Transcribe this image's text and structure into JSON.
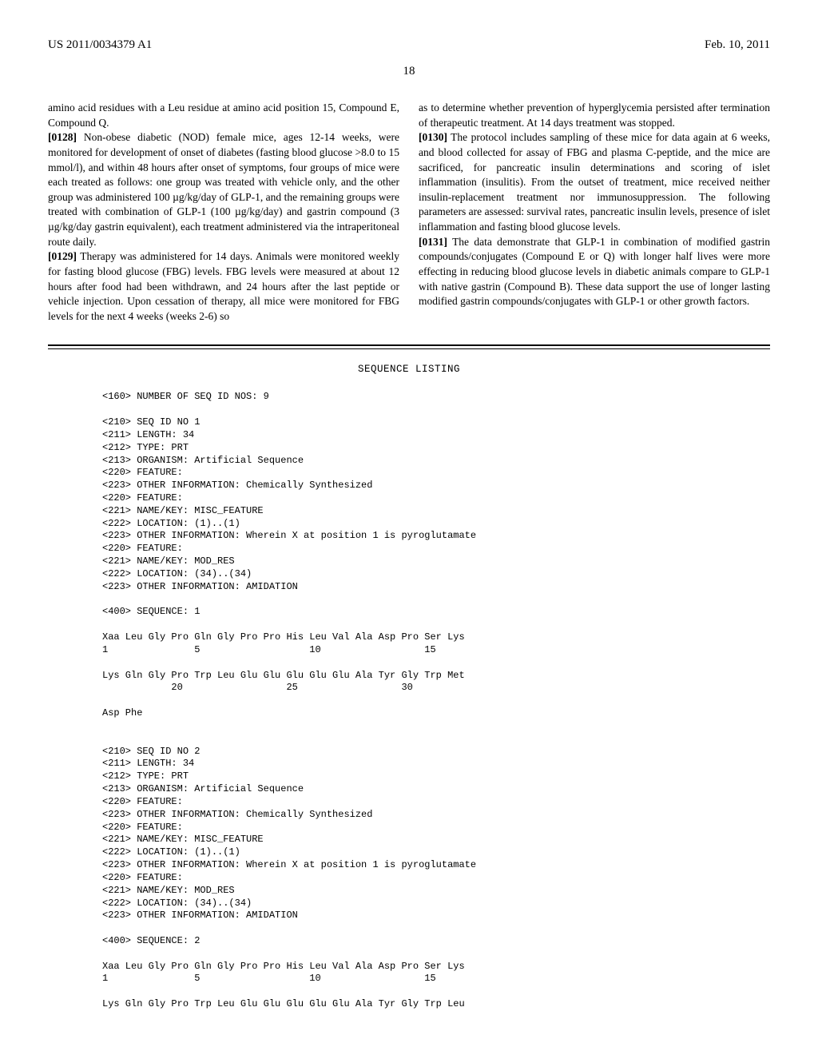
{
  "header": {
    "left": "US 2011/0034379 A1",
    "right": "Feb. 10, 2011"
  },
  "page_number": "18",
  "left_column": {
    "continuation": "amino acid residues with a Leu residue at amino acid position 15, Compound E, Compound Q.",
    "p0128_num": "[0128]",
    "p0128": "    Non-obese diabetic (NOD) female mice, ages 12-14 weeks, were monitored for development of onset of diabetes (fasting blood glucose >8.0 to 15 mmol/l), and within 48 hours after onset of symptoms, four groups of mice were each treated as follows: one group was treated with vehicle only, and the other group was administered 100 µg/kg/day of GLP-1, and the remaining groups were treated with combination of GLP-1 (100 µg/kg/day) and gastrin compound (3 µg/kg/day gastrin equivalent), each treatment administered via the intraperitoneal route daily.",
    "p0129_num": "[0129]",
    "p0129": "    Therapy was administered for 14 days. Animals were monitored weekly for fasting blood glucose (FBG) levels. FBG levels were measured at about 12 hours after food had been withdrawn, and 24 hours after the last peptide or vehicle injection. Upon cessation of therapy, all mice were monitored for FBG levels for the next 4 weeks (weeks 2-6) so"
  },
  "right_column": {
    "continuation": "as to determine whether prevention of hyperglycemia persisted after termination of therapeutic treatment. At 14 days treatment was stopped.",
    "p0130_num": "[0130]",
    "p0130": "    The protocol includes sampling of these mice for data again at 6 weeks, and blood collected for assay of FBG and plasma C-peptide, and the mice are sacrificed, for pancreatic insulin determinations and scoring of islet inflammation (insulitis). From the outset of treatment, mice received neither insulin-replacement treatment nor immunosuppression. The following parameters are assessed: survival rates, pancreatic insulin levels, presence of islet inflammation and fasting blood glucose levels.",
    "p0131_num": "[0131]",
    "p0131": "    The data demonstrate that GLP-1 in combination of modified gastrin compounds/conjugates (Compound E or Q) with longer half lives were more effecting in reducing blood glucose levels in diabetic animals compare to GLP-1 with native gastrin (Compound B). These data support the use of longer lasting modified gastrin compounds/conjugates with GLP-1 or other growth factors."
  },
  "sequence_listing": {
    "title": "SEQUENCE LISTING",
    "body": "<160> NUMBER OF SEQ ID NOS: 9\n\n<210> SEQ ID NO 1\n<211> LENGTH: 34\n<212> TYPE: PRT\n<213> ORGANISM: Artificial Sequence\n<220> FEATURE:\n<223> OTHER INFORMATION: Chemically Synthesized\n<220> FEATURE:\n<221> NAME/KEY: MISC_FEATURE\n<222> LOCATION: (1)..(1)\n<223> OTHER INFORMATION: Wherein X at position 1 is pyroglutamate\n<220> FEATURE:\n<221> NAME/KEY: MOD_RES\n<222> LOCATION: (34)..(34)\n<223> OTHER INFORMATION: AMIDATION\n\n<400> SEQUENCE: 1\n\nXaa Leu Gly Pro Gln Gly Pro Pro His Leu Val Ala Asp Pro Ser Lys\n1               5                   10                  15\n\nLys Gln Gly Pro Trp Leu Glu Glu Glu Glu Glu Ala Tyr Gly Trp Met\n            20                  25                  30\n\nAsp Phe\n\n\n<210> SEQ ID NO 2\n<211> LENGTH: 34\n<212> TYPE: PRT\n<213> ORGANISM: Artificial Sequence\n<220> FEATURE:\n<223> OTHER INFORMATION: Chemically Synthesized\n<220> FEATURE:\n<221> NAME/KEY: MISC_FEATURE\n<222> LOCATION: (1)..(1)\n<223> OTHER INFORMATION: Wherein X at position 1 is pyroglutamate\n<220> FEATURE:\n<221> NAME/KEY: MOD_RES\n<222> LOCATION: (34)..(34)\n<223> OTHER INFORMATION: AMIDATION\n\n<400> SEQUENCE: 2\n\nXaa Leu Gly Pro Gln Gly Pro Pro His Leu Val Ala Asp Pro Ser Lys\n1               5                   10                  15\n\nLys Gln Gly Pro Trp Leu Glu Glu Glu Glu Glu Ala Tyr Gly Trp Leu"
  }
}
